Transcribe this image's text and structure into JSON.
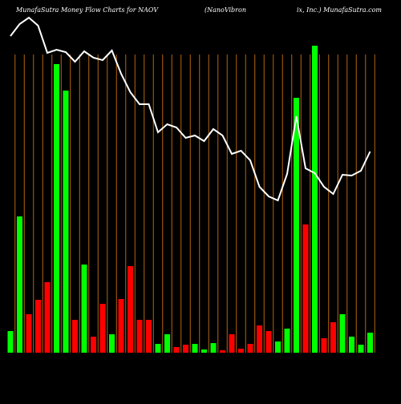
{
  "chart_data": {
    "type": "bar",
    "title": "MunafaSutra  Money Flow  Charts for NAOV",
    "subtitle": "(NanoVibron",
    "subtitle2": "ix,  Inc.) MunafaSutra.com",
    "values": [
      27,
      170,
      48,
      66,
      88,
      360,
      327,
      41,
      110,
      20,
      61,
      23,
      67,
      108,
      41,
      41,
      11,
      23,
      7,
      10,
      11,
      4,
      12,
      3,
      23,
      5,
      11,
      34,
      27,
      14,
      30,
      318,
      160,
      383,
      18,
      38,
      48,
      20,
      10,
      25
    ],
    "colors": [
      "#00ff00",
      "#00ff00",
      "#ff0000",
      "#ff0000",
      "#ff0000",
      "#00ff00",
      "#00ff00",
      "#ff0000",
      "#00ff00",
      "#ff0000",
      "#ff0000",
      "#00ff00",
      "#ff0000",
      "#ff0000",
      "#ff0000",
      "#ff0000",
      "#00ff00",
      "#00ff00",
      "#ff0000",
      "#ff0000",
      "#00ff00",
      "#00ff00",
      "#00ff00",
      "#ff0000",
      "#ff0000",
      "#ff0000",
      "#ff0000",
      "#ff0000",
      "#ff0000",
      "#00ff00",
      "#00ff00",
      "#00ff00",
      "#ff0000",
      "#00ff00",
      "#ff0000",
      "#ff0000",
      "#00ff00",
      "#00ff00",
      "#00ff00",
      "#00ff00"
    ],
    "line_values": [
      395,
      410,
      418,
      408,
      374,
      378,
      375,
      363,
      376,
      368,
      365,
      377,
      348,
      325,
      310,
      310,
      275,
      285,
      281,
      268,
      271,
      264,
      279,
      271,
      248,
      252,
      240,
      207,
      195,
      190,
      223,
      295,
      230,
      224,
      207,
      198,
      222,
      221,
      227,
      251
    ],
    "line_color": "#ffffff",
    "grid_color": "#b5650d"
  }
}
